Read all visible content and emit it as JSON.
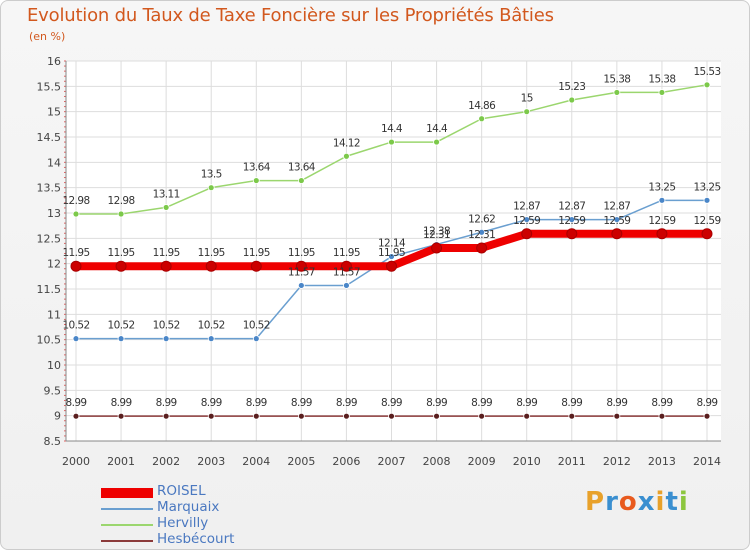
{
  "title": "Evolution du Taux de Taxe Foncière sur les Propriétés Bâties",
  "unit": "(en %)",
  "logo": {
    "text": "Proxiti",
    "letters": [
      "P",
      "r",
      "o",
      "x",
      "i",
      "t",
      "i"
    ],
    "colors": [
      "#e8a12a",
      "#3a8fd0",
      "#e85a1e",
      "#3a8fd0",
      "#e8a12a",
      "#3a8fd0",
      "#8cc63e"
    ]
  },
  "chart_data": {
    "type": "line",
    "title": "Evolution du Taux de Taxe Foncière sur les Propriétés Bâties",
    "ylabel": "(en %)",
    "xlabel": "",
    "categories": [
      "2000",
      "2001",
      "2002",
      "2003",
      "2004",
      "2005",
      "2006",
      "2007",
      "2008",
      "2009",
      "2010",
      "2011",
      "2012",
      "2013",
      "2014"
    ],
    "ylim": [
      8.5,
      16
    ],
    "yticks": [
      8.5,
      9,
      9.5,
      10,
      10.5,
      11,
      11.5,
      12,
      12.5,
      13,
      13.5,
      14,
      14.5,
      15,
      15.5,
      16
    ],
    "ytick_labels": [
      "8.5",
      "9",
      "9.5",
      "10",
      "10.5",
      "11",
      "11.5",
      "12",
      "12.5",
      "13",
      "13.5",
      "14",
      "14.5",
      "15",
      "15.5",
      "16"
    ],
    "grid": true,
    "series": [
      {
        "name": "ROISEL",
        "color": "#ee0000",
        "values": [
          11.95,
          11.95,
          11.95,
          11.95,
          11.95,
          11.95,
          11.95,
          11.95,
          12.31,
          12.31,
          12.59,
          12.59,
          12.59,
          12.59,
          12.59
        ],
        "labels": [
          "11.95",
          "11.95",
          "11.95",
          "11.95",
          "11.95",
          "11.95",
          "11.95",
          "11.95",
          "12.31",
          "12.31",
          "12.59",
          "12.59",
          "12.59",
          "12.59",
          "12.59"
        ]
      },
      {
        "name": "Marquaix",
        "color": "#6a9fd0",
        "values": [
          10.52,
          10.52,
          10.52,
          10.52,
          10.52,
          11.57,
          11.57,
          12.14,
          12.38,
          12.62,
          12.87,
          12.87,
          12.87,
          13.25,
          13.25
        ],
        "labels": [
          "10.52",
          "10.52",
          "10.52",
          "10.52",
          "10.52",
          "11.57",
          "11.57",
          "12.14",
          "12.38",
          "12.62",
          "12.87",
          "12.87",
          "12.87",
          "13.25",
          "13.25"
        ]
      },
      {
        "name": "Hervilly",
        "color": "#9bd66e",
        "values": [
          12.98,
          12.98,
          13.11,
          13.5,
          13.64,
          13.64,
          14.12,
          14.4,
          14.4,
          14.86,
          15,
          15.23,
          15.38,
          15.38,
          15.53
        ],
        "labels": [
          "12.98",
          "12.98",
          "13.11",
          "13.5",
          "13.64",
          "13.64",
          "14.12",
          "14.4",
          "14.4",
          "14.86",
          "15",
          "15.23",
          "15.38",
          "15.38",
          "15.53"
        ]
      },
      {
        "name": "Hesbécourt",
        "color": "#8b3a3a",
        "values": [
          8.99,
          8.99,
          8.99,
          8.99,
          8.99,
          8.99,
          8.99,
          8.99,
          8.99,
          8.99,
          8.99,
          8.99,
          8.99,
          8.99,
          8.99
        ],
        "labels": [
          "8.99",
          "8.99",
          "8.99",
          "8.99",
          "8.99",
          "8.99",
          "8.99",
          "8.99",
          "8.99",
          "8.99",
          "8.99",
          "8.99",
          "8.99",
          "8.99",
          "8.99"
        ]
      }
    ]
  }
}
